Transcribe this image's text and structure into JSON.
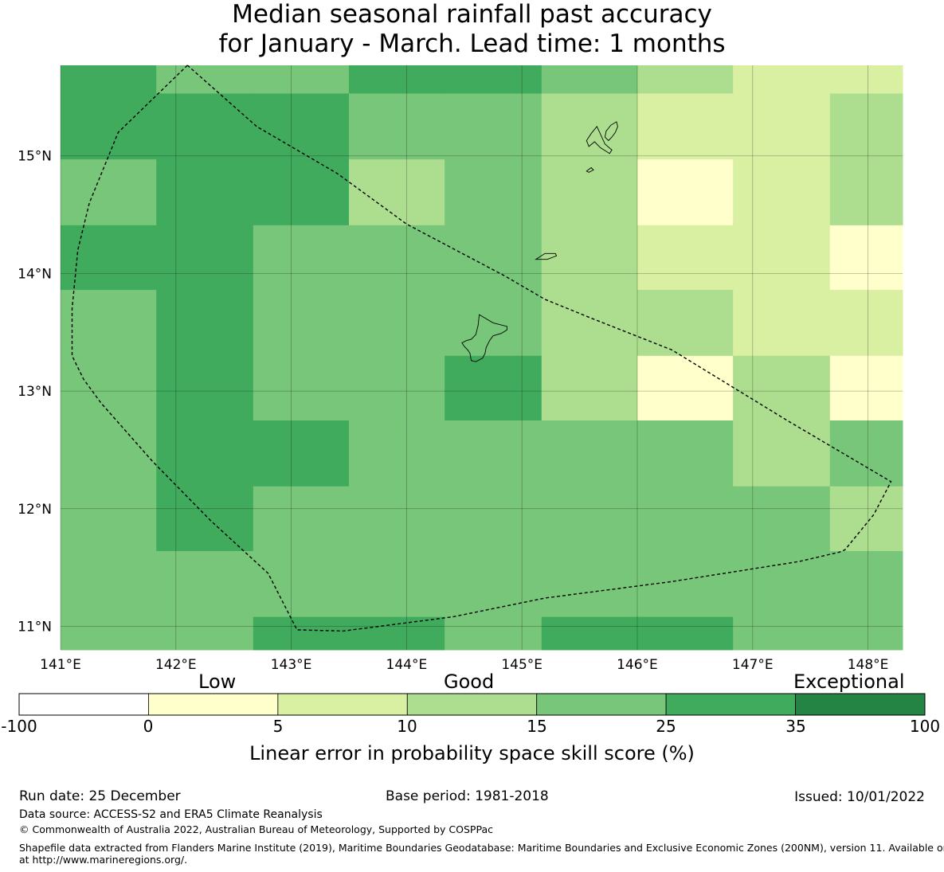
{
  "title": {
    "line1": "Median seasonal rainfall past accuracy",
    "line2": "for January - March. Lead time: 1 months"
  },
  "map": {
    "lon_labels": [
      "141°E",
      "142°E",
      "143°E",
      "144°E",
      "145°E",
      "146°E",
      "147°E",
      "148°E"
    ],
    "lat_labels": [
      "15°N",
      "14°N",
      "13°N",
      "12°N",
      "11°N"
    ],
    "grid_lons": [
      141.0,
      141.83,
      142.67,
      143.5,
      144.33,
      145.17,
      146.0,
      146.83,
      147.67,
      148.3
    ],
    "grid_lats": [
      15.77,
      15.53,
      14.97,
      14.41,
      13.86,
      13.3,
      12.75,
      12.19,
      11.64,
      11.08,
      10.8
    ],
    "skill_grid": [
      [
        25,
        15,
        15,
        25,
        25,
        15,
        10,
        5,
        5
      ],
      [
        25,
        25,
        25,
        15,
        15,
        10,
        5,
        5,
        10
      ],
      [
        15,
        25,
        25,
        10,
        15,
        10,
        0,
        5,
        10
      ],
      [
        25,
        25,
        15,
        15,
        15,
        10,
        5,
        5,
        0
      ],
      [
        15,
        25,
        15,
        15,
        15,
        10,
        10,
        5,
        5
      ],
      [
        15,
        25,
        15,
        15,
        25,
        10,
        0,
        10,
        0
      ],
      [
        15,
        25,
        25,
        15,
        15,
        15,
        15,
        10,
        15
      ],
      [
        15,
        25,
        15,
        15,
        15,
        15,
        15,
        15,
        10
      ],
      [
        15,
        15,
        15,
        15,
        15,
        15,
        15,
        15,
        15
      ],
      [
        15,
        15,
        25,
        25,
        15,
        25,
        25,
        15,
        15
      ]
    ],
    "eez_boundary": [
      [
        142.1,
        15.77
      ],
      [
        141.5,
        15.2
      ],
      [
        141.25,
        14.6
      ],
      [
        141.15,
        14.2
      ],
      [
        141.1,
        13.7
      ],
      [
        141.1,
        13.3
      ],
      [
        141.2,
        13.1
      ],
      [
        141.35,
        12.9
      ],
      [
        141.8,
        12.4
      ],
      [
        142.3,
        11.9
      ],
      [
        142.8,
        11.45
      ],
      [
        143.05,
        10.97
      ],
      [
        143.45,
        10.96
      ],
      [
        144.4,
        11.08
      ],
      [
        145.2,
        11.24
      ],
      [
        146.3,
        11.38
      ],
      [
        147.4,
        11.55
      ],
      [
        147.75,
        11.63
      ],
      [
        147.8,
        11.65
      ],
      [
        148.05,
        11.95
      ],
      [
        148.2,
        12.23
      ],
      [
        147.3,
        12.75
      ],
      [
        146.8,
        13.05
      ],
      [
        146.3,
        13.35
      ],
      [
        145.6,
        13.62
      ],
      [
        145.2,
        13.78
      ],
      [
        144.85,
        13.98
      ],
      [
        144.0,
        14.42
      ],
      [
        143.4,
        14.85
      ],
      [
        142.7,
        15.25
      ],
      [
        142.1,
        15.77
      ]
    ],
    "islands": [
      [
        [
          144.63,
          13.65
        ],
        [
          144.75,
          13.58
        ],
        [
          144.87,
          13.55
        ],
        [
          144.87,
          13.52
        ],
        [
          144.82,
          13.49
        ],
        [
          144.75,
          13.47
        ],
        [
          144.72,
          13.43
        ],
        [
          144.69,
          13.37
        ],
        [
          144.68,
          13.32
        ],
        [
          144.66,
          13.28
        ],
        [
          144.6,
          13.25
        ],
        [
          144.56,
          13.26
        ],
        [
          144.55,
          13.32
        ],
        [
          144.53,
          13.35
        ],
        [
          144.5,
          13.38
        ],
        [
          144.48,
          13.41
        ],
        [
          144.52,
          13.43
        ],
        [
          144.56,
          13.44
        ],
        [
          144.6,
          13.48
        ],
        [
          144.62,
          13.56
        ],
        [
          144.63,
          13.65
        ]
      ],
      [
        [
          145.12,
          14.12
        ],
        [
          145.2,
          14.17
        ],
        [
          145.29,
          14.17
        ],
        [
          145.3,
          14.15
        ],
        [
          145.22,
          14.12
        ],
        [
          145.15,
          14.12
        ],
        [
          145.12,
          14.12
        ]
      ],
      [
        [
          145.65,
          15.25
        ],
        [
          145.72,
          15.1
        ],
        [
          145.78,
          15.05
        ],
        [
          145.76,
          15.02
        ],
        [
          145.68,
          15.07
        ],
        [
          145.63,
          15.12
        ],
        [
          145.58,
          15.08
        ],
        [
          145.56,
          15.13
        ],
        [
          145.6,
          15.19
        ],
        [
          145.65,
          15.25
        ]
      ],
      [
        [
          145.75,
          15.13
        ],
        [
          145.78,
          15.16
        ],
        [
          145.81,
          15.2
        ],
        [
          145.83,
          15.25
        ],
        [
          145.82,
          15.29
        ],
        [
          145.77,
          15.26
        ],
        [
          145.73,
          15.21
        ],
        [
          145.72,
          15.16
        ],
        [
          145.75,
          15.13
        ]
      ],
      [
        [
          145.56,
          14.87
        ],
        [
          145.6,
          14.9
        ],
        [
          145.62,
          14.88
        ],
        [
          145.58,
          14.86
        ],
        [
          145.56,
          14.87
        ]
      ]
    ]
  },
  "colorbar": {
    "category_labels": [
      "Low",
      "Good",
      "Exceptional"
    ],
    "ticks": [
      "-100",
      "0",
      "5",
      "10",
      "15",
      "25",
      "35",
      "100"
    ],
    "colors": [
      "#ffffff",
      "#ffffcc",
      "#d9f0a3",
      "#addd8e",
      "#78c679",
      "#41ab5d",
      "#238443"
    ],
    "label": "Linear error in probability space skill score (%)"
  },
  "footer": {
    "run_date": "Run date: 25 December",
    "base_period": "Base period: 1981-2018",
    "issued": "Issued: 10/01/2022",
    "data_source": "Data source: ACCESS-S2 and ERA5 Climate Reanalysis",
    "copyright": "© Commonwealth of Australia 2022, Australian Bureau of Meteorology, Supported by COSPPac",
    "shapefile_line1": "Shapefile data extracted from Flanders Marine Institute (2019), Maritime Boundaries Geodatabase: Maritime Boundaries and Exclusive Economic Zones (200NM), version 11. Available online",
    "shapefile_line2": "at http://www.marineregions.org/."
  }
}
